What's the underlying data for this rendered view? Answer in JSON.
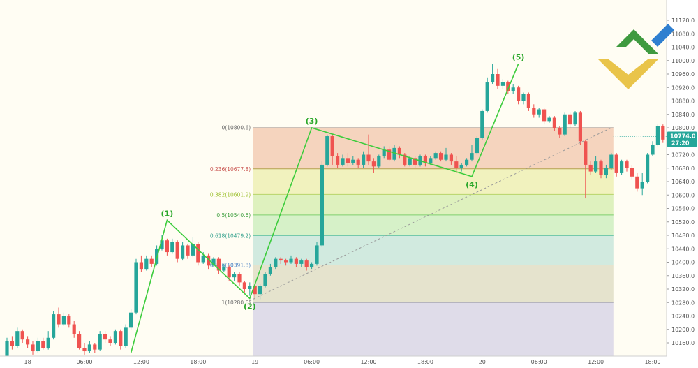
{
  "chart_data": {
    "type": "candlestick",
    "y_axis": {
      "ylim": [
        10120,
        11130
      ],
      "ticks": [
        "11120.0",
        "11080.0",
        "11040.0",
        "11000.0",
        "10960.0",
        "10920.0",
        "10880.0",
        "10840.0",
        "10800.0",
        "10760.0",
        "10720.0",
        "10680.0",
        "10640.0",
        "10600.0",
        "10560.0",
        "10520.0",
        "10480.0",
        "10440.0",
        "10400.0",
        "10360.0",
        "10320.0",
        "10280.0",
        "10240.0",
        "10200.0",
        "10160.0"
      ]
    },
    "x_axis": {
      "ticks": [
        {
          "label": "18",
          "bar": 4
        },
        {
          "label": "06:00",
          "bar": 15
        },
        {
          "label": "12:00",
          "bar": 26
        },
        {
          "label": "18:00",
          "bar": 37
        },
        {
          "label": "19",
          "bar": 48
        },
        {
          "label": "06:00",
          "bar": 59
        },
        {
          "label": "12:00",
          "bar": 70
        },
        {
          "label": "18:00",
          "bar": 81
        },
        {
          "label": "20",
          "bar": 92
        },
        {
          "label": "06:00",
          "bar": 103
        },
        {
          "label": "12:00",
          "bar": 114
        },
        {
          "label": "18:00",
          "bar": 125
        }
      ]
    },
    "price_tag": {
      "value": "10774.0",
      "time": "27:20",
      "price": 10774,
      "color": "#26a69a"
    },
    "colors": {
      "up": "#26a69a",
      "down": "#ef5350",
      "wave": "#3ccc3c",
      "wave_label": "#2aa72a"
    },
    "candles": [
      [
        10120,
        10165,
        10110,
        10175
      ],
      [
        10165,
        10150,
        10140,
        10180
      ],
      [
        10150,
        10195,
        10145,
        10205
      ],
      [
        10195,
        10170,
        10160,
        10200
      ],
      [
        10170,
        10155,
        10145,
        10180
      ],
      [
        10155,
        10135,
        10125,
        10165
      ],
      [
        10135,
        10165,
        10130,
        10175
      ],
      [
        10165,
        10145,
        10140,
        10175
      ],
      [
        10145,
        10175,
        10140,
        10195
      ],
      [
        10175,
        10245,
        10170,
        10255
      ],
      [
        10245,
        10215,
        10205,
        10265
      ],
      [
        10215,
        10240,
        10210,
        10250
      ],
      [
        10240,
        10215,
        10205,
        10245
      ],
      [
        10215,
        10185,
        10175,
        10225
      ],
      [
        10185,
        10145,
        10140,
        10195
      ],
      [
        10145,
        10135,
        10125,
        10160
      ],
      [
        10135,
        10155,
        10130,
        10165
      ],
      [
        10155,
        10140,
        10130,
        10160
      ],
      [
        10140,
        10185,
        10135,
        10195
      ],
      [
        10185,
        10170,
        10160,
        10195
      ],
      [
        10170,
        10160,
        10150,
        10180
      ],
      [
        10160,
        10195,
        10155,
        10200
      ],
      [
        10195,
        10150,
        10140,
        10200
      ],
      [
        10150,
        10205,
        10145,
        10215
      ],
      [
        10205,
        10250,
        10200,
        10260
      ],
      [
        10250,
        10400,
        10245,
        10410
      ],
      [
        10400,
        10380,
        10370,
        10420
      ],
      [
        10380,
        10410,
        10375,
        10420
      ],
      [
        10410,
        10395,
        10385,
        10420
      ],
      [
        10395,
        10440,
        10390,
        10450
      ],
      [
        10440,
        10465,
        10435,
        10480
      ],
      [
        10465,
        10430,
        10420,
        10470
      ],
      [
        10430,
        10460,
        10425,
        10470
      ],
      [
        10460,
        10410,
        10400,
        10465
      ],
      [
        10410,
        10450,
        10405,
        10460
      ],
      [
        10450,
        10420,
        10410,
        10455
      ],
      [
        10420,
        10455,
        10415,
        10475
      ],
      [
        10455,
        10400,
        10390,
        10460
      ],
      [
        10400,
        10420,
        10395,
        10430
      ],
      [
        10420,
        10390,
        10380,
        10425
      ],
      [
        10390,
        10410,
        10385,
        10415
      ],
      [
        10410,
        10375,
        10365,
        10415
      ],
      [
        10375,
        10385,
        10370,
        10395
      ],
      [
        10385,
        10355,
        10345,
        10390
      ],
      [
        10355,
        10365,
        10345,
        10370
      ],
      [
        10365,
        10340,
        10330,
        10370
      ],
      [
        10340,
        10320,
        10310,
        10345
      ],
      [
        10320,
        10330,
        10300,
        10340
      ],
      [
        10330,
        10305,
        10290,
        10335
      ],
      [
        10305,
        10330,
        10290,
        10335
      ],
      [
        10330,
        10365,
        10325,
        10370
      ],
      [
        10365,
        10385,
        10360,
        10395
      ],
      [
        10385,
        10410,
        10380,
        10415
      ],
      [
        10410,
        10405,
        10395,
        10415
      ],
      [
        10405,
        10400,
        10390,
        10410
      ],
      [
        10400,
        10410,
        10395,
        10420
      ],
      [
        10410,
        10395,
        10385,
        10415
      ],
      [
        10395,
        10405,
        10385,
        10410
      ],
      [
        10405,
        10385,
        10375,
        10410
      ],
      [
        10385,
        10395,
        10380,
        10400
      ],
      [
        10395,
        10450,
        10390,
        10460
      ],
      [
        10450,
        10690,
        10445,
        10700
      ],
      [
        10690,
        10775,
        10685,
        10780
      ],
      [
        10775,
        10715,
        10690,
        10780
      ],
      [
        10715,
        10690,
        10680,
        10725
      ],
      [
        10690,
        10710,
        10685,
        10720
      ],
      [
        10710,
        10695,
        10685,
        10725
      ],
      [
        10695,
        10705,
        10690,
        10715
      ],
      [
        10705,
        10690,
        10680,
        10710
      ],
      [
        10690,
        10720,
        10680,
        10730
      ],
      [
        10720,
        10700,
        10690,
        10780
      ],
      [
        10700,
        10685,
        10665,
        10710
      ],
      [
        10685,
        10715,
        10680,
        10720
      ],
      [
        10715,
        10735,
        10710,
        10745
      ],
      [
        10735,
        10705,
        10700,
        10745
      ],
      [
        10705,
        10740,
        10700,
        10750
      ],
      [
        10740,
        10720,
        10710,
        10745
      ],
      [
        10720,
        10690,
        10685,
        10725
      ],
      [
        10690,
        10710,
        10685,
        10715
      ],
      [
        10710,
        10690,
        10680,
        10715
      ],
      [
        10690,
        10715,
        10685,
        10720
      ],
      [
        10715,
        10695,
        10685,
        10720
      ],
      [
        10695,
        10710,
        10690,
        10715
      ],
      [
        10710,
        10725,
        10705,
        10730
      ],
      [
        10725,
        10705,
        10700,
        10730
      ],
      [
        10705,
        10720,
        10700,
        10740
      ],
      [
        10720,
        10700,
        10690,
        10725
      ],
      [
        10700,
        10680,
        10665,
        10715
      ],
      [
        10680,
        10690,
        10670,
        10695
      ],
      [
        10690,
        10705,
        10685,
        10710
      ],
      [
        10705,
        10725,
        10700,
        10750
      ],
      [
        10725,
        10770,
        10720,
        10775
      ],
      [
        10770,
        10850,
        10765,
        10855
      ],
      [
        10850,
        10935,
        10845,
        10950
      ],
      [
        10935,
        10960,
        10930,
        10990
      ],
      [
        10960,
        10925,
        10915,
        10975
      ],
      [
        10925,
        10935,
        10915,
        10945
      ],
      [
        10935,
        10910,
        10900,
        10940
      ],
      [
        10910,
        10920,
        10900,
        10930
      ],
      [
        10920,
        10880,
        10870,
        10925
      ],
      [
        10880,
        10900,
        10870,
        10905
      ],
      [
        10900,
        10860,
        10850,
        10905
      ],
      [
        10860,
        10840,
        10830,
        10870
      ],
      [
        10840,
        10855,
        10830,
        10860
      ],
      [
        10855,
        10820,
        10810,
        10860
      ],
      [
        10820,
        10830,
        10815,
        10835
      ],
      [
        10830,
        10800,
        10790,
        10835
      ],
      [
        10800,
        10780,
        10770,
        10805
      ],
      [
        10780,
        10840,
        10775,
        10845
      ],
      [
        10840,
        10810,
        10800,
        10845
      ],
      [
        10810,
        10845,
        10805,
        10850
      ],
      [
        10845,
        10760,
        10750,
        10850
      ],
      [
        10760,
        10690,
        10590,
        10765
      ],
      [
        10690,
        10670,
        10660,
        10700
      ],
      [
        10670,
        10700,
        10665,
        10715
      ],
      [
        10700,
        10660,
        10650,
        10705
      ],
      [
        10660,
        10680,
        10650,
        10690
      ],
      [
        10680,
        10720,
        10675,
        10725
      ],
      [
        10720,
        10665,
        10655,
        10725
      ],
      [
        10665,
        10700,
        10660,
        10705
      ],
      [
        10700,
        10680,
        10670,
        10705
      ],
      [
        10680,
        10655,
        10645,
        10690
      ],
      [
        10655,
        10620,
        10610,
        10665
      ],
      [
        10620,
        10640,
        10600,
        10665
      ],
      [
        10640,
        10720,
        10635,
        10725
      ],
      [
        10720,
        10750,
        10715,
        10760
      ],
      [
        10750,
        10805,
        10745,
        10810
      ],
      [
        10805,
        10765,
        10755,
        10810
      ],
      [
        10765,
        10785,
        10760,
        10790
      ],
      [
        10785,
        10760,
        10755,
        10790
      ],
      [
        10760,
        10770,
        10755,
        10785
      ],
      [
        10770,
        10774,
        10760,
        10790
      ]
    ],
    "fibonacci": {
      "start_bar": 48,
      "end_bar": 117,
      "levels": [
        {
          "label": "0(10800.6)",
          "price": 10800.6,
          "line": "#b9aca5",
          "text": "#6b6b6b"
        },
        {
          "label": "0.236(10677.8)",
          "price": 10677.8,
          "line": "#b4a24e",
          "text": "#c9534f"
        },
        {
          "label": "0.382(10601.9)",
          "price": 10601.9,
          "line": "#b8d46a",
          "text": "#9bbf2a"
        },
        {
          "label": "0.5(10540.6)",
          "price": 10540.6,
          "line": "#7fcf6f",
          "text": "#3f9f3f"
        },
        {
          "label": "0.618(10479.2)",
          "price": 10479.2,
          "line": "#66c4a4",
          "text": "#2f9f8a"
        },
        {
          "label": "0.786(10391.8)",
          "price": 10391.8,
          "line": "#5c95d6",
          "text": "#4a82c5"
        },
        {
          "label": "1(10280.6)",
          "price": 10280.6,
          "line": "#8b8d92",
          "text": "#6b6b6b"
        }
      ],
      "fills": [
        "#f3cdb4",
        "#eef0b4",
        "#d8efb4",
        "#cfeec0",
        "#c9e6db",
        "#e0dec5",
        "#d9d6e6"
      ]
    },
    "waves": [
      {
        "label": "(1)",
        "bar": 31,
        "price": 10525,
        "label_pos": "above"
      },
      {
        "label": "(2)",
        "bar": 47,
        "price": 10292,
        "label_pos": "below"
      },
      {
        "label": "(3)",
        "bar": 59,
        "price": 10800,
        "label_pos": "above"
      },
      {
        "label": "(4)",
        "bar": 90,
        "price": 10655,
        "label_pos": "below"
      },
      {
        "label": "(5)",
        "bar": 99,
        "price": 10990,
        "label_pos": "above"
      }
    ],
    "wave_origin": {
      "bar": 24,
      "price": 10130
    },
    "dashed_line": {
      "from": {
        "bar": 47,
        "price": 10285
      },
      "to": {
        "bar": 117,
        "price": 10800
      }
    }
  }
}
